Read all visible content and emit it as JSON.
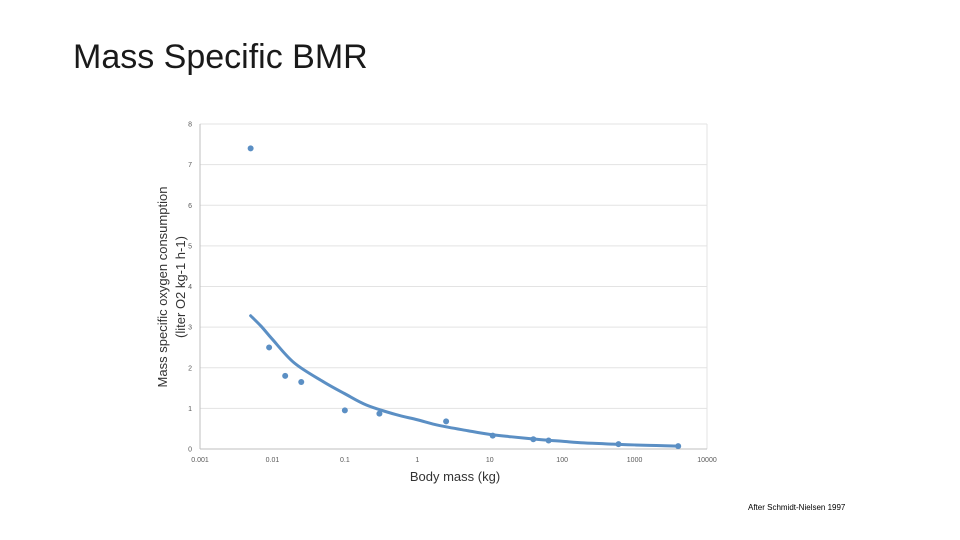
{
  "slide": {
    "title": "Mass Specific BMR",
    "credit": "After Schmidt-Nielsen 1997"
  },
  "chart_data": {
    "type": "scatter",
    "xscale": "log",
    "xlabel": "Body mass (kg)",
    "ylabel_line1": "Mass specific oxygen consumption",
    "ylabel_line2": "(liter O2 kg-1 h-1)",
    "xlim": [
      0.001,
      10000
    ],
    "ylim": [
      0,
      8
    ],
    "xticks": [
      0.001,
      0.01,
      0.1,
      1,
      10,
      100,
      1000,
      10000
    ],
    "xtick_labels": [
      "0.001",
      "0.01",
      "0.1",
      "1",
      "10",
      "100",
      "1000",
      "10000"
    ],
    "yticks": [
      0,
      1,
      2,
      3,
      4,
      5,
      6,
      7,
      8
    ],
    "ytick_labels": [
      "0",
      "1",
      "2",
      "3",
      "4",
      "5",
      "6",
      "7",
      "8"
    ],
    "grid": "horizontal",
    "series": [
      {
        "points": [
          [
            0.005,
            7.4
          ],
          [
            0.009,
            2.5
          ],
          [
            0.015,
            1.8
          ],
          [
            0.025,
            1.65
          ],
          [
            0.1,
            0.95
          ],
          [
            0.3,
            0.87
          ],
          [
            2.5,
            0.68
          ],
          [
            11,
            0.33
          ],
          [
            40,
            0.24
          ],
          [
            65,
            0.21
          ],
          [
            600,
            0.12
          ],
          [
            4000,
            0.07
          ]
        ]
      }
    ],
    "trendline": {
      "type": "power",
      "x_range": [
        0.005,
        4000
      ],
      "points": [
        [
          0.005,
          3.28
        ],
        [
          0.007,
          3.02
        ],
        [
          0.01,
          2.7
        ],
        [
          0.02,
          2.12
        ],
        [
          0.05,
          1.66
        ],
        [
          0.1,
          1.36
        ],
        [
          0.2,
          1.08
        ],
        [
          0.5,
          0.85
        ],
        [
          1,
          0.72
        ],
        [
          2,
          0.58
        ],
        [
          5,
          0.45
        ],
        [
          10,
          0.36
        ],
        [
          20,
          0.3
        ],
        [
          50,
          0.23
        ],
        [
          100,
          0.19
        ],
        [
          200,
          0.15
        ],
        [
          500,
          0.12
        ],
        [
          1000,
          0.1
        ],
        [
          2000,
          0.085
        ],
        [
          4000,
          0.07
        ]
      ]
    },
    "colors": {
      "marker": "#5b8fc4",
      "trendline": "#5b8fc4",
      "grid": "#e3e3e3",
      "axis": "#bfbfbf"
    }
  }
}
